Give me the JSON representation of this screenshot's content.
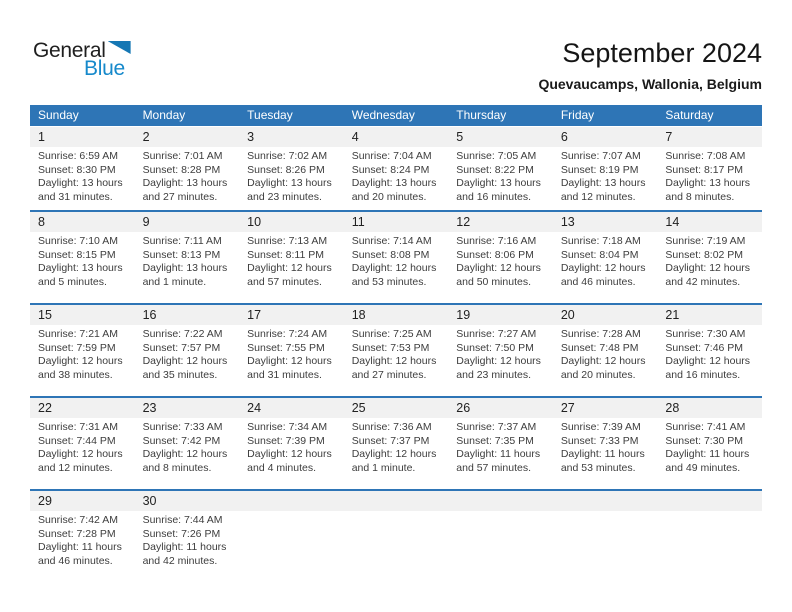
{
  "page": {
    "title": "September 2024",
    "subtitle": "Quevaucamps, Wallonia, Belgium"
  },
  "logo": {
    "part1": "General",
    "part2": "Blue"
  },
  "colors": {
    "header_blue": "#2E75B6",
    "row_divider_blue": "#2E75B6",
    "day_strip_gray": "#F1F1F1",
    "logo_blue": "#1689CB",
    "logo_triangle_blue": "#1577B4",
    "text_dark": "#3D3D3D"
  },
  "calendar": {
    "weekday_headers": [
      "Sunday",
      "Monday",
      "Tuesday",
      "Wednesday",
      "Thursday",
      "Friday",
      "Saturday"
    ],
    "weeks": [
      {
        "days": [
          {
            "day": "1",
            "sunrise": "Sunrise: 6:59 AM",
            "sunset": "Sunset: 8:30 PM",
            "daylight": "Daylight: 13 hours and 31 minutes."
          },
          {
            "day": "2",
            "sunrise": "Sunrise: 7:01 AM",
            "sunset": "Sunset: 8:28 PM",
            "daylight": "Daylight: 13 hours and 27 minutes."
          },
          {
            "day": "3",
            "sunrise": "Sunrise: 7:02 AM",
            "sunset": "Sunset: 8:26 PM",
            "daylight": "Daylight: 13 hours and 23 minutes."
          },
          {
            "day": "4",
            "sunrise": "Sunrise: 7:04 AM",
            "sunset": "Sunset: 8:24 PM",
            "daylight": "Daylight: 13 hours and 20 minutes."
          },
          {
            "day": "5",
            "sunrise": "Sunrise: 7:05 AM",
            "sunset": "Sunset: 8:22 PM",
            "daylight": "Daylight: 13 hours and 16 minutes."
          },
          {
            "day": "6",
            "sunrise": "Sunrise: 7:07 AM",
            "sunset": "Sunset: 8:19 PM",
            "daylight": "Daylight: 13 hours and 12 minutes."
          },
          {
            "day": "7",
            "sunrise": "Sunrise: 7:08 AM",
            "sunset": "Sunset: 8:17 PM",
            "daylight": "Daylight: 13 hours and 8 minutes."
          }
        ]
      },
      {
        "days": [
          {
            "day": "8",
            "sunrise": "Sunrise: 7:10 AM",
            "sunset": "Sunset: 8:15 PM",
            "daylight": "Daylight: 13 hours and 5 minutes."
          },
          {
            "day": "9",
            "sunrise": "Sunrise: 7:11 AM",
            "sunset": "Sunset: 8:13 PM",
            "daylight": "Daylight: 13 hours and 1 minute."
          },
          {
            "day": "10",
            "sunrise": "Sunrise: 7:13 AM",
            "sunset": "Sunset: 8:11 PM",
            "daylight": "Daylight: 12 hours and 57 minutes."
          },
          {
            "day": "11",
            "sunrise": "Sunrise: 7:14 AM",
            "sunset": "Sunset: 8:08 PM",
            "daylight": "Daylight: 12 hours and 53 minutes."
          },
          {
            "day": "12",
            "sunrise": "Sunrise: 7:16 AM",
            "sunset": "Sunset: 8:06 PM",
            "daylight": "Daylight: 12 hours and 50 minutes."
          },
          {
            "day": "13",
            "sunrise": "Sunrise: 7:18 AM",
            "sunset": "Sunset: 8:04 PM",
            "daylight": "Daylight: 12 hours and 46 minutes."
          },
          {
            "day": "14",
            "sunrise": "Sunrise: 7:19 AM",
            "sunset": "Sunset: 8:02 PM",
            "daylight": "Daylight: 12 hours and 42 minutes."
          }
        ]
      },
      {
        "days": [
          {
            "day": "15",
            "sunrise": "Sunrise: 7:21 AM",
            "sunset": "Sunset: 7:59 PM",
            "daylight": "Daylight: 12 hours and 38 minutes."
          },
          {
            "day": "16",
            "sunrise": "Sunrise: 7:22 AM",
            "sunset": "Sunset: 7:57 PM",
            "daylight": "Daylight: 12 hours and 35 minutes."
          },
          {
            "day": "17",
            "sunrise": "Sunrise: 7:24 AM",
            "sunset": "Sunset: 7:55 PM",
            "daylight": "Daylight: 12 hours and 31 minutes."
          },
          {
            "day": "18",
            "sunrise": "Sunrise: 7:25 AM",
            "sunset": "Sunset: 7:53 PM",
            "daylight": "Daylight: 12 hours and 27 minutes."
          },
          {
            "day": "19",
            "sunrise": "Sunrise: 7:27 AM",
            "sunset": "Sunset: 7:50 PM",
            "daylight": "Daylight: 12 hours and 23 minutes."
          },
          {
            "day": "20",
            "sunrise": "Sunrise: 7:28 AM",
            "sunset": "Sunset: 7:48 PM",
            "daylight": "Daylight: 12 hours and 20 minutes."
          },
          {
            "day": "21",
            "sunrise": "Sunrise: 7:30 AM",
            "sunset": "Sunset: 7:46 PM",
            "daylight": "Daylight: 12 hours and 16 minutes."
          }
        ]
      },
      {
        "days": [
          {
            "day": "22",
            "sunrise": "Sunrise: 7:31 AM",
            "sunset": "Sunset: 7:44 PM",
            "daylight": "Daylight: 12 hours and 12 minutes."
          },
          {
            "day": "23",
            "sunrise": "Sunrise: 7:33 AM",
            "sunset": "Sunset: 7:42 PM",
            "daylight": "Daylight: 12 hours and 8 minutes."
          },
          {
            "day": "24",
            "sunrise": "Sunrise: 7:34 AM",
            "sunset": "Sunset: 7:39 PM",
            "daylight": "Daylight: 12 hours and 4 minutes."
          },
          {
            "day": "25",
            "sunrise": "Sunrise: 7:36 AM",
            "sunset": "Sunset: 7:37 PM",
            "daylight": "Daylight: 12 hours and 1 minute."
          },
          {
            "day": "26",
            "sunrise": "Sunrise: 7:37 AM",
            "sunset": "Sunset: 7:35 PM",
            "daylight": "Daylight: 11 hours and 57 minutes."
          },
          {
            "day": "27",
            "sunrise": "Sunrise: 7:39 AM",
            "sunset": "Sunset: 7:33 PM",
            "daylight": "Daylight: 11 hours and 53 minutes."
          },
          {
            "day": "28",
            "sunrise": "Sunrise: 7:41 AM",
            "sunset": "Sunset: 7:30 PM",
            "daylight": "Daylight: 11 hours and 49 minutes."
          }
        ]
      },
      {
        "days": [
          {
            "day": "29",
            "sunrise": "Sunrise: 7:42 AM",
            "sunset": "Sunset: 7:28 PM",
            "daylight": "Daylight: 11 hours and 46 minutes."
          },
          {
            "day": "30",
            "sunrise": "Sunrise: 7:44 AM",
            "sunset": "Sunset: 7:26 PM",
            "daylight": "Daylight: 11 hours and 42 minutes."
          },
          null,
          null,
          null,
          null,
          null
        ]
      }
    ]
  }
}
